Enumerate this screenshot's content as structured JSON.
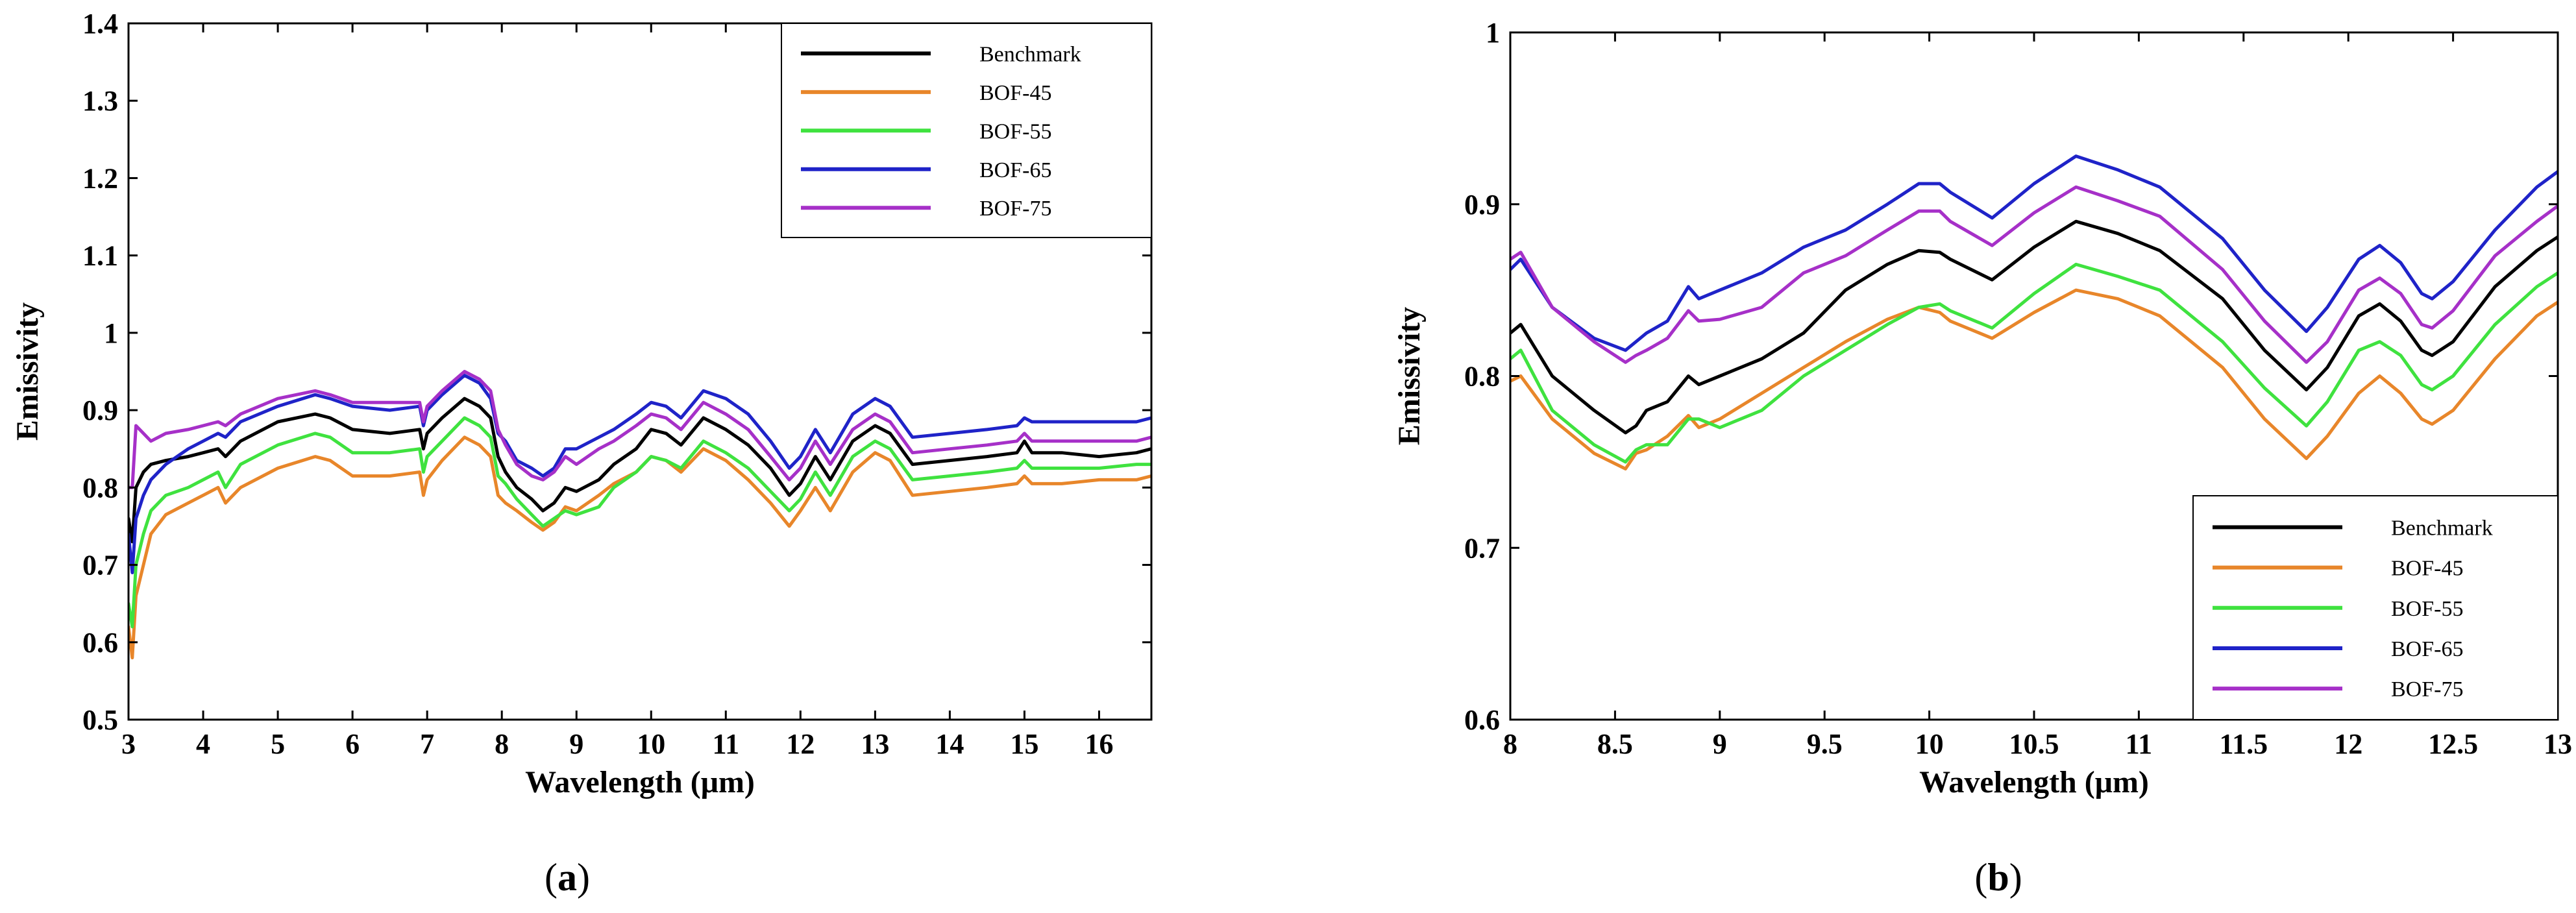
{
  "captions": {
    "a_open": "(",
    "a_letter": "a",
    "a_close": ")",
    "b_open": "(",
    "b_letter": "b",
    "b_close": ")"
  },
  "chart_data": [
    {
      "id": "a",
      "type": "line",
      "title": "",
      "xlabel": "Wavelength (μm)",
      "ylabel": "Emissivity",
      "xlim": [
        3,
        16.7
      ],
      "ylim": [
        0.5,
        1.4
      ],
      "xticks": [
        3,
        4,
        5,
        6,
        7,
        8,
        9,
        10,
        11,
        12,
        13,
        14,
        15,
        16
      ],
      "xtick_labels": [
        "3",
        "4",
        "5",
        "6",
        "7",
        "8",
        "9",
        "10",
        "11",
        "12",
        "13",
        "14",
        "15",
        "16"
      ],
      "yticks": [
        0.5,
        0.6,
        0.7,
        0.8,
        0.9,
        1.0,
        1.1,
        1.2,
        1.3,
        1.4
      ],
      "ytick_labels": [
        "0.5",
        "0.6",
        "0.7",
        "0.8",
        "0.9",
        "1",
        "1.1",
        "1.2",
        "1.3",
        "1.4"
      ],
      "legend_position": "top-right",
      "x": [
        3.0,
        3.05,
        3.1,
        3.2,
        3.3,
        3.5,
        3.8,
        4.0,
        4.2,
        4.3,
        4.5,
        5.0,
        5.5,
        5.7,
        6.0,
        6.5,
        6.9,
        6.95,
        7.0,
        7.2,
        7.5,
        7.7,
        7.85,
        7.95,
        8.05,
        8.2,
        8.4,
        8.55,
        8.7,
        8.85,
        9.0,
        9.3,
        9.5,
        9.8,
        10.0,
        10.2,
        10.4,
        10.7,
        11.0,
        11.3,
        11.6,
        11.85,
        12.0,
        12.2,
        12.4,
        12.7,
        13.0,
        13.2,
        13.5,
        14.0,
        14.5,
        14.9,
        15.0,
        15.1,
        15.5,
        16.0,
        16.5,
        16.7
      ],
      "series": [
        {
          "name": "Benchmark",
          "color": "#000000",
          "values": [
            0.76,
            0.73,
            0.8,
            0.82,
            0.83,
            0.835,
            0.84,
            0.845,
            0.85,
            0.84,
            0.86,
            0.885,
            0.895,
            0.89,
            0.875,
            0.87,
            0.875,
            0.85,
            0.87,
            0.89,
            0.915,
            0.905,
            0.89,
            0.84,
            0.82,
            0.8,
            0.785,
            0.77,
            0.78,
            0.8,
            0.795,
            0.81,
            0.83,
            0.85,
            0.875,
            0.87,
            0.855,
            0.89,
            0.875,
            0.855,
            0.825,
            0.79,
            0.805,
            0.84,
            0.81,
            0.86,
            0.88,
            0.87,
            0.83,
            0.835,
            0.84,
            0.845,
            0.86,
            0.845,
            0.845,
            0.84,
            0.845,
            0.85
          ]
        },
        {
          "name": "BOF-45",
          "color": "#e8862a",
          "values": [
            0.62,
            0.58,
            0.66,
            0.7,
            0.74,
            0.765,
            0.78,
            0.79,
            0.8,
            0.78,
            0.8,
            0.825,
            0.84,
            0.835,
            0.815,
            0.815,
            0.82,
            0.79,
            0.81,
            0.835,
            0.865,
            0.855,
            0.84,
            0.79,
            0.78,
            0.77,
            0.755,
            0.745,
            0.755,
            0.775,
            0.77,
            0.79,
            0.805,
            0.82,
            0.84,
            0.835,
            0.82,
            0.85,
            0.835,
            0.81,
            0.78,
            0.75,
            0.77,
            0.8,
            0.77,
            0.82,
            0.845,
            0.835,
            0.79,
            0.795,
            0.8,
            0.805,
            0.815,
            0.805,
            0.805,
            0.81,
            0.81,
            0.815
          ]
        },
        {
          "name": "BOF-55",
          "color": "#3fe23f",
          "values": [
            0.65,
            0.62,
            0.7,
            0.74,
            0.77,
            0.79,
            0.8,
            0.81,
            0.82,
            0.8,
            0.83,
            0.855,
            0.87,
            0.865,
            0.845,
            0.845,
            0.85,
            0.82,
            0.84,
            0.86,
            0.89,
            0.88,
            0.865,
            0.815,
            0.805,
            0.785,
            0.765,
            0.75,
            0.76,
            0.77,
            0.765,
            0.775,
            0.8,
            0.82,
            0.84,
            0.835,
            0.825,
            0.86,
            0.845,
            0.825,
            0.795,
            0.77,
            0.785,
            0.82,
            0.79,
            0.84,
            0.86,
            0.85,
            0.81,
            0.815,
            0.82,
            0.825,
            0.835,
            0.825,
            0.825,
            0.825,
            0.83,
            0.83
          ]
        },
        {
          "name": "BOF-65",
          "color": "#1f23c8",
          "values": [
            0.74,
            0.69,
            0.76,
            0.79,
            0.81,
            0.83,
            0.85,
            0.86,
            0.87,
            0.865,
            0.885,
            0.905,
            0.92,
            0.915,
            0.905,
            0.9,
            0.905,
            0.88,
            0.9,
            0.92,
            0.945,
            0.935,
            0.915,
            0.87,
            0.86,
            0.835,
            0.825,
            0.815,
            0.825,
            0.85,
            0.85,
            0.865,
            0.875,
            0.895,
            0.91,
            0.905,
            0.89,
            0.925,
            0.915,
            0.895,
            0.86,
            0.825,
            0.84,
            0.875,
            0.845,
            0.895,
            0.915,
            0.905,
            0.865,
            0.87,
            0.875,
            0.88,
            0.89,
            0.885,
            0.885,
            0.885,
            0.885,
            0.89
          ]
        },
        {
          "name": "BOF-75",
          "color": "#a630c8",
          "values": [
            0.8,
            0.8,
            0.88,
            0.87,
            0.86,
            0.87,
            0.875,
            0.88,
            0.885,
            0.88,
            0.895,
            0.915,
            0.925,
            0.92,
            0.91,
            0.91,
            0.91,
            0.885,
            0.905,
            0.925,
            0.95,
            0.94,
            0.925,
            0.875,
            0.855,
            0.83,
            0.815,
            0.81,
            0.82,
            0.84,
            0.83,
            0.85,
            0.86,
            0.88,
            0.895,
            0.89,
            0.875,
            0.91,
            0.895,
            0.875,
            0.84,
            0.81,
            0.825,
            0.86,
            0.83,
            0.875,
            0.895,
            0.885,
            0.845,
            0.85,
            0.855,
            0.86,
            0.87,
            0.86,
            0.86,
            0.86,
            0.86,
            0.865
          ]
        }
      ]
    },
    {
      "id": "b",
      "type": "line",
      "title": "",
      "xlabel": "Wavelength (μm)",
      "ylabel": "Emissivity",
      "xlim": [
        8,
        13
      ],
      "ylim": [
        0.6,
        1.0
      ],
      "xticks": [
        8,
        8.5,
        9,
        9.5,
        10,
        10.5,
        11,
        11.5,
        12,
        12.5,
        13
      ],
      "xtick_labels": [
        "8",
        "8.5",
        "9",
        "9.5",
        "10",
        "10.5",
        "11",
        "11.5",
        "12",
        "12.5",
        "13"
      ],
      "yticks": [
        0.6,
        0.7,
        0.8,
        0.9,
        1.0
      ],
      "ytick_labels": [
        "0.6",
        "0.7",
        "0.8",
        "0.9",
        "1"
      ],
      "legend_position": "bottom-right",
      "x": [
        8.0,
        8.05,
        8.2,
        8.4,
        8.55,
        8.6,
        8.65,
        8.75,
        8.85,
        8.9,
        9.0,
        9.2,
        9.4,
        9.6,
        9.8,
        9.95,
        10.05,
        10.1,
        10.3,
        10.5,
        10.7,
        10.9,
        11.1,
        11.4,
        11.6,
        11.8,
        11.9,
        12.05,
        12.15,
        12.25,
        12.35,
        12.4,
        12.5,
        12.7,
        12.9,
        13.0
      ],
      "series": [
        {
          "name": "Benchmark",
          "color": "#000000",
          "values": [
            0.825,
            0.83,
            0.8,
            0.78,
            0.767,
            0.771,
            0.78,
            0.785,
            0.8,
            0.795,
            0.8,
            0.81,
            0.825,
            0.85,
            0.865,
            0.873,
            0.872,
            0.868,
            0.856,
            0.875,
            0.89,
            0.883,
            0.873,
            0.845,
            0.815,
            0.792,
            0.805,
            0.835,
            0.842,
            0.832,
            0.815,
            0.812,
            0.82,
            0.852,
            0.873,
            0.881
          ]
        },
        {
          "name": "BOF-45",
          "color": "#e8862a",
          "values": [
            0.797,
            0.8,
            0.775,
            0.755,
            0.746,
            0.755,
            0.757,
            0.765,
            0.777,
            0.77,
            0.775,
            0.79,
            0.805,
            0.82,
            0.833,
            0.84,
            0.837,
            0.832,
            0.822,
            0.837,
            0.85,
            0.845,
            0.835,
            0.805,
            0.775,
            0.752,
            0.765,
            0.79,
            0.8,
            0.79,
            0.775,
            0.772,
            0.78,
            0.81,
            0.835,
            0.843
          ]
        },
        {
          "name": "BOF-55",
          "color": "#3fe23f",
          "values": [
            0.81,
            0.815,
            0.78,
            0.76,
            0.75,
            0.757,
            0.76,
            0.76,
            0.775,
            0.775,
            0.77,
            0.78,
            0.8,
            0.815,
            0.83,
            0.84,
            0.842,
            0.838,
            0.828,
            0.848,
            0.865,
            0.858,
            0.85,
            0.82,
            0.793,
            0.771,
            0.785,
            0.815,
            0.82,
            0.812,
            0.795,
            0.792,
            0.8,
            0.83,
            0.852,
            0.86
          ]
        },
        {
          "name": "BOF-65",
          "color": "#1f23c8",
          "values": [
            0.862,
            0.868,
            0.84,
            0.822,
            0.815,
            0.82,
            0.825,
            0.832,
            0.852,
            0.845,
            0.85,
            0.86,
            0.875,
            0.885,
            0.9,
            0.912,
            0.912,
            0.907,
            0.892,
            0.912,
            0.928,
            0.92,
            0.91,
            0.88,
            0.85,
            0.826,
            0.84,
            0.868,
            0.876,
            0.866,
            0.848,
            0.845,
            0.855,
            0.885,
            0.91,
            0.919
          ]
        },
        {
          "name": "BOF-75",
          "color": "#a630c8",
          "values": [
            0.868,
            0.872,
            0.84,
            0.82,
            0.808,
            0.812,
            0.815,
            0.822,
            0.838,
            0.832,
            0.833,
            0.84,
            0.86,
            0.87,
            0.885,
            0.896,
            0.896,
            0.89,
            0.876,
            0.895,
            0.91,
            0.902,
            0.893,
            0.862,
            0.832,
            0.808,
            0.82,
            0.85,
            0.857,
            0.848,
            0.83,
            0.828,
            0.838,
            0.87,
            0.89,
            0.899
          ]
        }
      ]
    }
  ]
}
